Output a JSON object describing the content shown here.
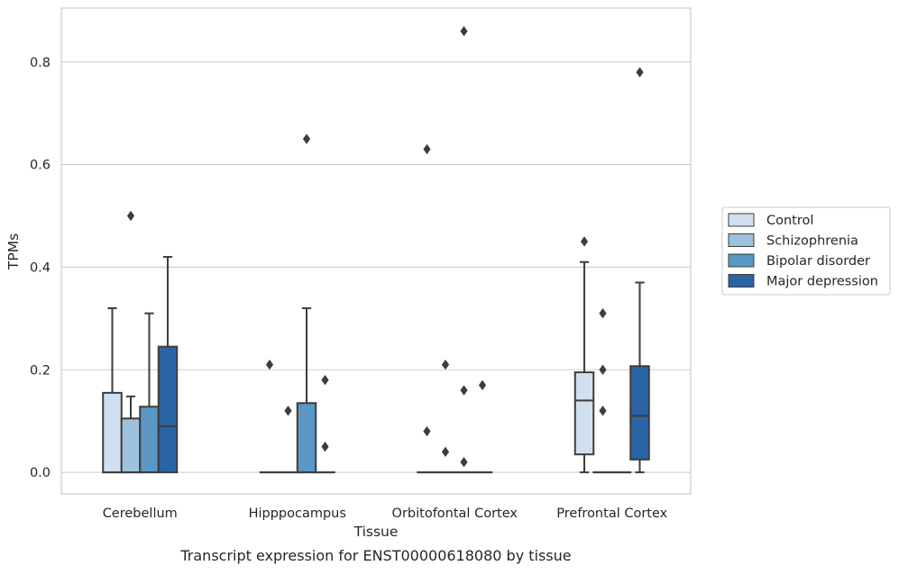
{
  "chart_data": {
    "type": "box",
    "title": "",
    "caption": "Transcript expression for ENST00000618080 by tissue",
    "xlabel": "Tissue",
    "ylabel": "TPMs",
    "ylim": [
      -0.042,
      0.905
    ],
    "yticks": [
      0.0,
      0.2,
      0.4,
      0.6,
      0.8
    ],
    "ytick_labels": [
      "0.0",
      "0.2",
      "0.4",
      "0.6",
      "0.8"
    ],
    "grid": true,
    "legend_position": "right",
    "categories": [
      "Cerebellum",
      "Hipppocampus",
      "Orbitofontal Cortex",
      "Prefrontal Cortex"
    ],
    "series": [
      {
        "name": "Control",
        "color": "#d1e0ef",
        "boxes": [
          {
            "q1": 0.0,
            "median": 0.0,
            "q3": 0.155,
            "whisker_low": 0.0,
            "whisker_high": 0.32,
            "outliers": []
          },
          {
            "q1": 0.0,
            "median": 0.0,
            "q3": 0.0,
            "whisker_low": 0.0,
            "whisker_high": 0.0,
            "outliers": [
              0.21
            ]
          },
          {
            "q1": 0.0,
            "median": 0.0,
            "q3": 0.0,
            "whisker_low": 0.0,
            "whisker_high": 0.0,
            "outliers": [
              0.63,
              0.08
            ]
          },
          {
            "q1": 0.035,
            "median": 0.14,
            "q3": 0.195,
            "whisker_low": 0.0,
            "whisker_high": 0.41,
            "outliers": [
              0.45
            ]
          }
        ]
      },
      {
        "name": "Schizophrenia",
        "color": "#9cc2de",
        "boxes": [
          {
            "q1": 0.0,
            "median": 0.0,
            "q3": 0.105,
            "whisker_low": 0.0,
            "whisker_high": 0.148,
            "outliers": [
              0.5
            ]
          },
          {
            "q1": 0.0,
            "median": 0.0,
            "q3": 0.0,
            "whisker_low": 0.0,
            "whisker_high": 0.0,
            "outliers": [
              0.12
            ]
          },
          {
            "q1": 0.0,
            "median": 0.0,
            "q3": 0.0,
            "whisker_low": 0.0,
            "whisker_high": 0.0,
            "outliers": [
              0.21,
              0.04
            ]
          },
          {
            "q1": 0.0,
            "median": 0.0,
            "q3": 0.0,
            "whisker_low": 0.0,
            "whisker_high": 0.0,
            "outliers": [
              0.31,
              0.2,
              0.12
            ]
          }
        ]
      },
      {
        "name": "Bipolar disorder",
        "color": "#5a97c5",
        "boxes": [
          {
            "q1": 0.0,
            "median": 0.0,
            "q3": 0.128,
            "whisker_low": 0.0,
            "whisker_high": 0.31,
            "outliers": []
          },
          {
            "q1": 0.0,
            "median": 0.0,
            "q3": 0.135,
            "whisker_low": 0.0,
            "whisker_high": 0.32,
            "outliers": [
              0.65
            ]
          },
          {
            "q1": 0.0,
            "median": 0.0,
            "q3": 0.0,
            "whisker_low": 0.0,
            "whisker_high": 0.0,
            "outliers": [
              0.86,
              0.16,
              0.02
            ]
          },
          {
            "q1": 0.0,
            "median": 0.0,
            "q3": 0.0,
            "whisker_low": 0.0,
            "whisker_high": 0.0,
            "outliers": []
          }
        ]
      },
      {
        "name": "Major depression",
        "color": "#2a64a4",
        "boxes": [
          {
            "q1": 0.0,
            "median": 0.09,
            "q3": 0.245,
            "whisker_low": 0.0,
            "whisker_high": 0.42,
            "outliers": []
          },
          {
            "q1": 0.0,
            "median": 0.0,
            "q3": 0.0,
            "whisker_low": 0.0,
            "whisker_high": 0.0,
            "outliers": [
              0.18,
              0.05
            ]
          },
          {
            "q1": 0.0,
            "median": 0.0,
            "q3": 0.0,
            "whisker_low": 0.0,
            "whisker_high": 0.0,
            "outliers": [
              0.17
            ]
          },
          {
            "q1": 0.025,
            "median": 0.11,
            "q3": 0.207,
            "whisker_low": 0.0,
            "whisker_high": 0.37,
            "outliers": [
              0.78
            ]
          }
        ]
      }
    ]
  }
}
